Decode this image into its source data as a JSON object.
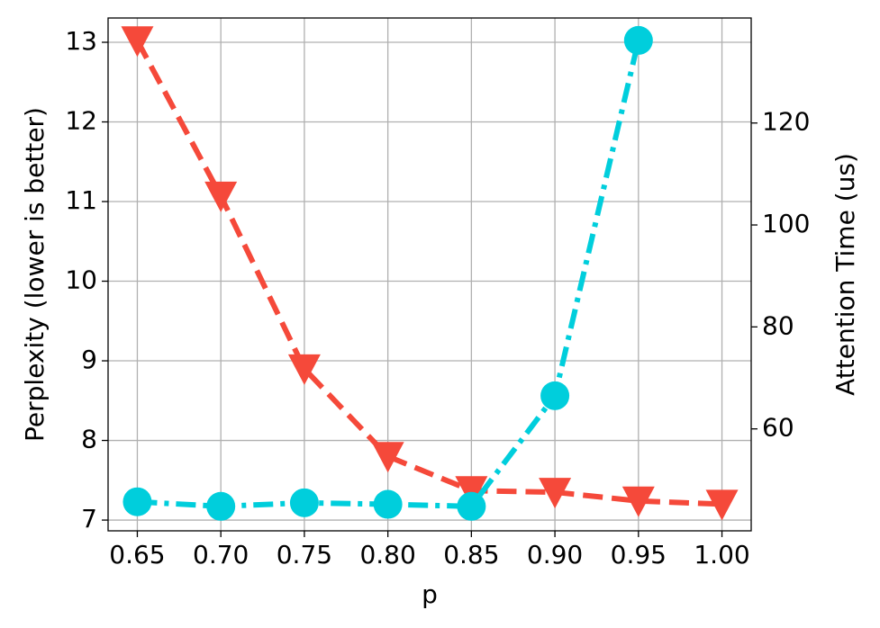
{
  "chart_data": {
    "type": "line",
    "xlabel": "p",
    "ylabel": "Perplexity (lower is better)",
    "y2label": "Attention Time (us)",
    "x": [
      0.65,
      0.7,
      0.75,
      0.8,
      0.85,
      0.9,
      0.95,
      1.0
    ],
    "xlim": [
      0.6325,
      1.0175
    ],
    "xticks": [
      0.65,
      {
        "value": 0.7,
        "label": "0.70"
      },
      0.75,
      {
        "value": 0.8,
        "label": "0.80"
      },
      0.85,
      {
        "value": 0.9,
        "label": "0.90"
      },
      0.95,
      {
        "value": 1.0,
        "label": "1.00"
      }
    ],
    "ylim": [
      6.865,
      13.305
    ],
    "yticks": [
      7,
      8,
      9,
      10,
      11,
      12,
      13
    ],
    "y2lim": [
      40.0,
      140.6
    ],
    "y2ticks": [
      60,
      80,
      100,
      120
    ],
    "grid": true,
    "series": [
      {
        "color": "#f5493a",
        "marker": "v",
        "linestyle": "dashed",
        "axis": "y",
        "values": [
          13.02,
          11.07,
          8.9,
          7.8,
          7.37,
          7.35,
          7.24,
          7.2
        ]
      },
      {
        "color": "#00cedc",
        "marker": "o",
        "linestyle": "dashdot",
        "axis": "y2",
        "values": [
          45.7,
          44.8,
          45.5,
          45.2,
          44.8,
          66.5,
          136.2,
          null
        ]
      }
    ]
  }
}
